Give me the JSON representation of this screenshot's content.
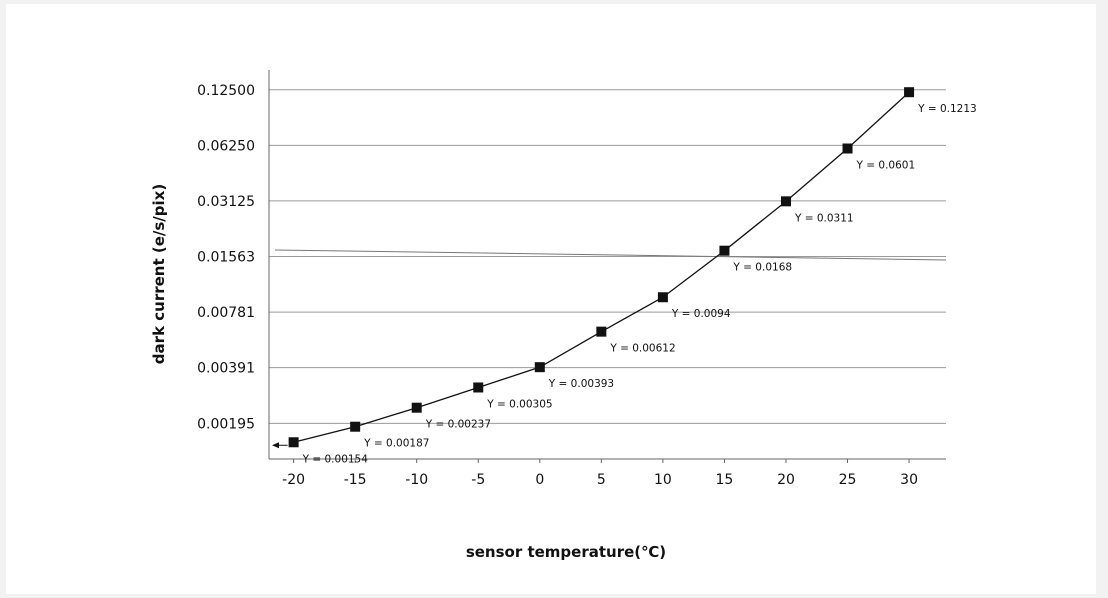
{
  "chart_data": {
    "type": "line",
    "xlabel": "sensor temperature(℃)",
    "ylabel": "dark current (e/s/pix)",
    "x_ticks": [
      "-20",
      "-15",
      "-10",
      "-5",
      "0",
      "5",
      "10",
      "15",
      "20",
      "25",
      "30"
    ],
    "y_ticks": [
      "0.00195",
      "0.00391",
      "0.00781",
      "0.01563",
      "0.03125",
      "0.06250",
      "0.12500"
    ],
    "y_scale": "log2",
    "xlim": [
      -22,
      33
    ],
    "ylim": [
      0.00125,
      0.16
    ],
    "grid": "horizontal",
    "series": [
      {
        "marker": "square",
        "color": "#111111",
        "x": [
          -20,
          -15,
          -10,
          -5,
          0,
          5,
          10,
          15,
          20,
          25,
          30
        ],
        "y": [
          0.00154,
          0.00187,
          0.00237,
          0.00305,
          0.00393,
          0.00612,
          0.0094,
          0.0168,
          0.0311,
          0.0601,
          0.1213
        ],
        "labels": [
          "Y = 0.00154",
          "Y = 0.00187",
          "Y = 0.00237",
          "Y = 0.00305",
          "Y = 0.00393",
          "Y = 0.00612",
          "Y = 0.0094",
          "Y = 0.0168",
          "Y = 0.0311",
          "Y = 0.0601",
          "Y = 0.1213"
        ]
      }
    ]
  }
}
